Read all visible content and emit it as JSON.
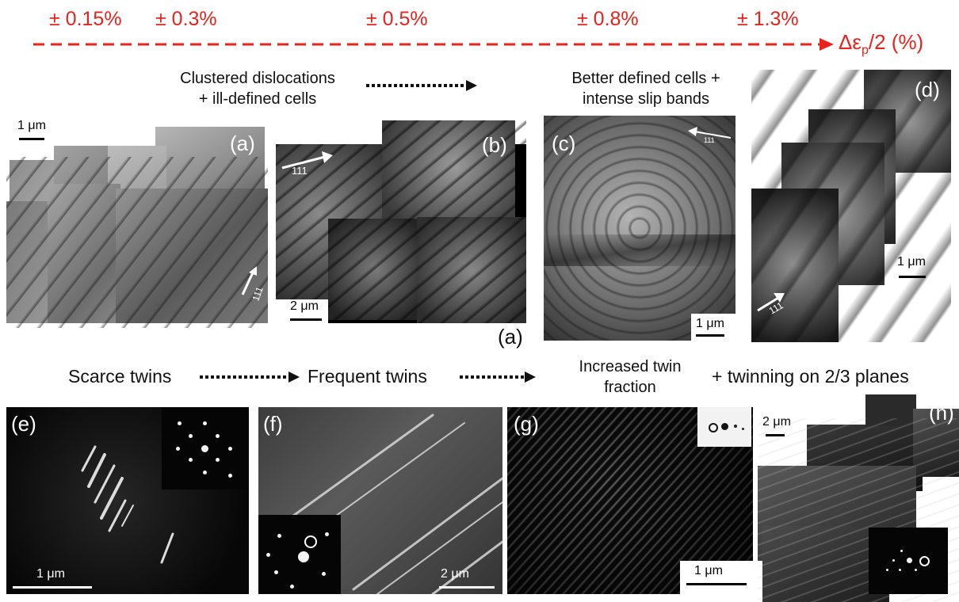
{
  "strain_axis": {
    "amplitudes": [
      "± 0.15%",
      "± 0.3%",
      "± 0.5%",
      "± 0.8%",
      "± 1.3%"
    ],
    "label": "Δε",
    "label_sub": "p",
    "label_tail": "/2 (%)",
    "color": "#e8221c"
  },
  "captions": {
    "top_left_line1": "Clustered dislocations",
    "top_left_line2": "+ ill-defined cells",
    "top_right_line1": "Better defined cells +",
    "top_right_line2": "intense slip bands",
    "scarce": "Scarce twins",
    "frequent": "Frequent twins",
    "increased_line1": "Increased twin",
    "increased_line2": "fraction",
    "planes": "+ twinning on 2/3 planes"
  },
  "panels": {
    "a": {
      "label": "(a)",
      "scale": "1 μm",
      "direction": "111"
    },
    "b": {
      "label": "(b)",
      "scale": "2 μm",
      "direction": "111",
      "extra_label": "(a)"
    },
    "c": {
      "label": "(c)",
      "scale": "1 μm",
      "direction": "111"
    },
    "d": {
      "label": "(d)",
      "scale": "1 μm",
      "direction": "111"
    },
    "e": {
      "label": "(e)",
      "scale": "1 μm"
    },
    "f": {
      "label": "(f)",
      "scale": "2 μm"
    },
    "g": {
      "label": "(g)",
      "scale": "1 μm"
    },
    "h": {
      "label": "(h)",
      "scale": "2 μm"
    }
  }
}
